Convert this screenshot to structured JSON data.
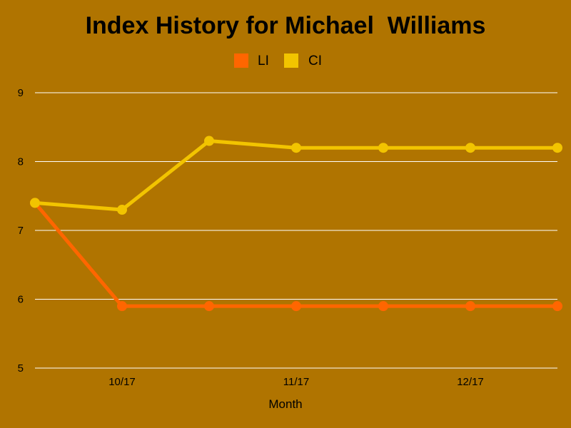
{
  "chart_data": {
    "type": "line",
    "title": "Index History for Michael  Williams",
    "xlabel": "Month",
    "ylabel": "",
    "ylim": [
      5,
      9
    ],
    "yticks": [
      "5",
      "6",
      "7",
      "8",
      "9"
    ],
    "x_ticks": [
      {
        "label": "10/17",
        "index": 1
      },
      {
        "label": "11/17",
        "index": 3
      },
      {
        "label": "12/17",
        "index": 5
      }
    ],
    "point_count": 7,
    "series": [
      {
        "name": "LI",
        "color": "#ff6600",
        "values": [
          7.4,
          5.9,
          5.9,
          5.9,
          5.9,
          5.9,
          5.9
        ]
      },
      {
        "name": "CI",
        "color": "#f2c400",
        "values": [
          7.4,
          7.3,
          8.3,
          8.2,
          8.2,
          8.2,
          8.2
        ]
      }
    ],
    "grid": true,
    "legend_position": "top-center"
  },
  "colors": {
    "background": "#b07400",
    "grid": "#ffffff"
  }
}
